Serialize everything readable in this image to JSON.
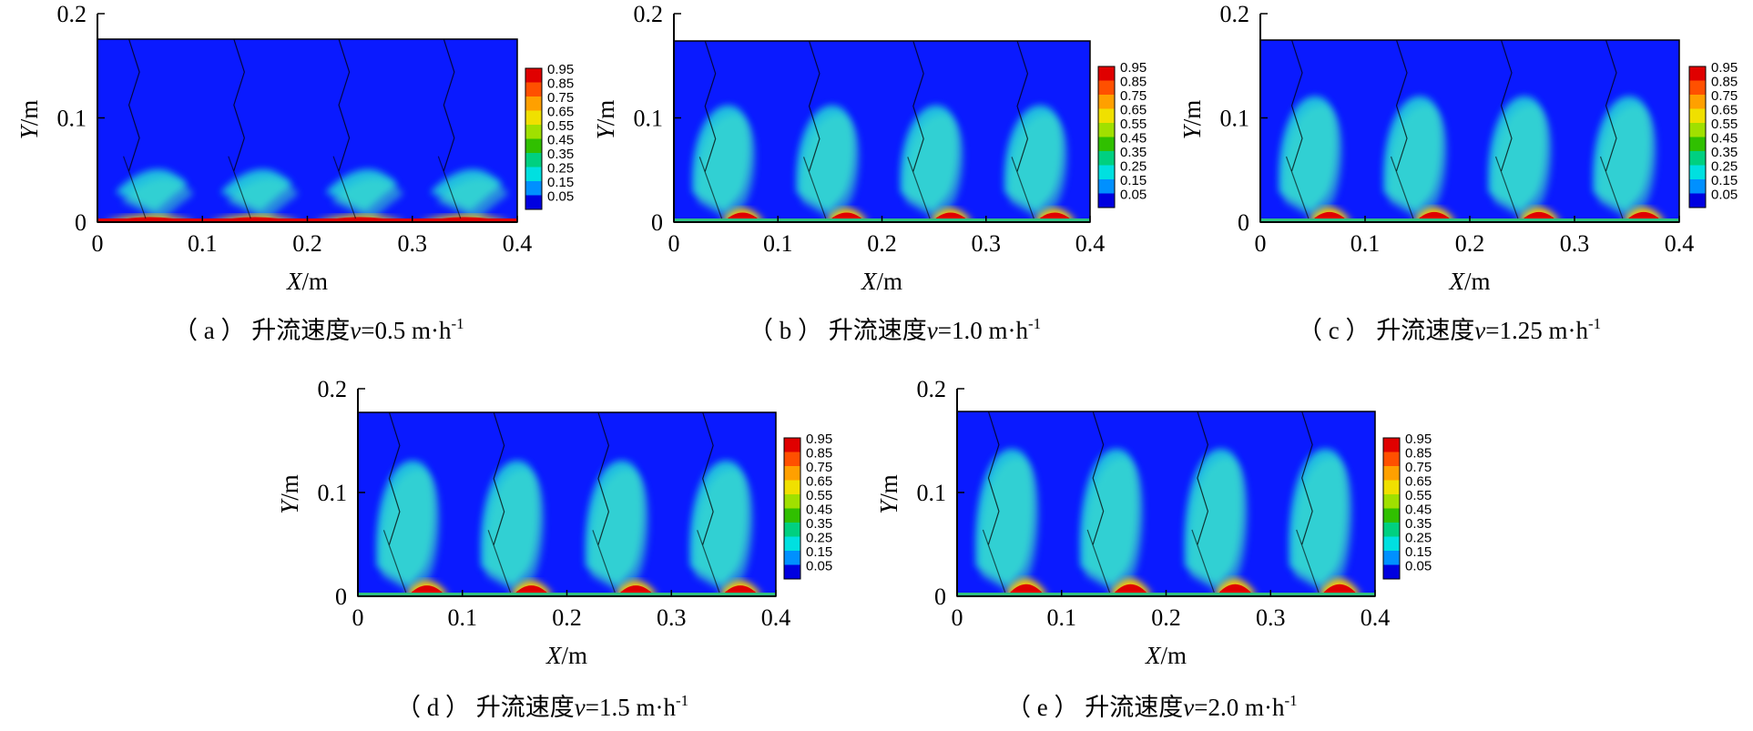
{
  "chart_data": [
    {
      "type": "heatmap",
      "caption": "（ a ） 升流速度v=0.5 m·h-1",
      "caption_parts": [
        "（ a ） 升流速度",
        "v",
        "=0.5 m·h",
        "-1"
      ],
      "xlabel_var": "X",
      "xlabel_unit": "/m",
      "ylabel_var": "Y",
      "ylabel_unit": "/m",
      "xlim": [
        0,
        0.4
      ],
      "ylim": [
        0,
        0.2
      ],
      "xticks": [
        "0",
        "0.1",
        "0.2",
        "0.3",
        "0.4"
      ],
      "yticks": [
        "0",
        "0.1",
        "0.2"
      ],
      "colorbar": [
        "0.95",
        "0.85",
        "0.75",
        "0.65",
        "0.55",
        "0.45",
        "0.35",
        "0.25",
        "0.15",
        "0.05"
      ],
      "upflow_velocity": 0.5
    },
    {
      "type": "heatmap",
      "caption": "（ b ） 升流速度v=1.0 m·h-1",
      "caption_parts": [
        "（ b ） 升流速度",
        "v",
        "=1.0 m·h",
        "-1"
      ],
      "xlabel_var": "X",
      "xlabel_unit": "/m",
      "ylabel_var": "Y",
      "ylabel_unit": "/m",
      "xlim": [
        0,
        0.4
      ],
      "ylim": [
        0,
        0.2
      ],
      "xticks": [
        "0",
        "0.1",
        "0.2",
        "0.3",
        "0.4"
      ],
      "yticks": [
        "0",
        "0.1",
        "0.2"
      ],
      "colorbar": [
        "0.95",
        "0.85",
        "0.75",
        "0.65",
        "0.55",
        "0.45",
        "0.35",
        "0.25",
        "0.15",
        "0.05"
      ],
      "upflow_velocity": 1.0
    },
    {
      "type": "heatmap",
      "caption": "（ c ） 升流速度v=1.25 m·h-1",
      "caption_parts": [
        "（ c ） 升流速度",
        "v",
        "=1.25 m·h",
        "-1"
      ],
      "xlabel_var": "X",
      "xlabel_unit": "/m",
      "ylabel_var": "Y",
      "ylabel_unit": "/m",
      "xlim": [
        0,
        0.4
      ],
      "ylim": [
        0,
        0.2
      ],
      "xticks": [
        "0",
        "0.1",
        "0.2",
        "0.3",
        "0.4"
      ],
      "yticks": [
        "0",
        "0.1",
        "0.2"
      ],
      "colorbar": [
        "0.95",
        "0.85",
        "0.75",
        "0.65",
        "0.55",
        "0.45",
        "0.35",
        "0.25",
        "0.15",
        "0.05"
      ],
      "upflow_velocity": 1.25
    },
    {
      "type": "heatmap",
      "caption": "（ d ） 升流速度v=1.5 m·h-1",
      "caption_parts": [
        "（ d ） 升流速度",
        "v",
        "=1.5 m·h",
        "-1"
      ],
      "xlabel_var": "X",
      "xlabel_unit": "/m",
      "ylabel_var": "Y",
      "ylabel_unit": "/m",
      "xlim": [
        0,
        0.4
      ],
      "ylim": [
        0,
        0.2
      ],
      "xticks": [
        "0",
        "0.1",
        "0.2",
        "0.3",
        "0.4"
      ],
      "yticks": [
        "0",
        "0.1",
        "0.2"
      ],
      "colorbar": [
        "0.95",
        "0.85",
        "0.75",
        "0.65",
        "0.55",
        "0.45",
        "0.35",
        "0.25",
        "0.15",
        "0.05"
      ],
      "upflow_velocity": 1.5
    },
    {
      "type": "heatmap",
      "caption": "（ e ） 升流速度v=2.0 m·h-1",
      "caption_parts": [
        "（ e ） 升流速度",
        "v",
        "=2.0 m·h",
        "-1"
      ],
      "xlabel_var": "X",
      "xlabel_unit": "/m",
      "ylabel_var": "Y",
      "ylabel_unit": "/m",
      "xlim": [
        0,
        0.4
      ],
      "ylim": [
        0,
        0.2
      ],
      "xticks": [
        "0",
        "0.1",
        "0.2",
        "0.3",
        "0.4"
      ],
      "yticks": [
        "0",
        "0.1",
        "0.2"
      ],
      "colorbar": [
        "0.95",
        "0.85",
        "0.75",
        "0.65",
        "0.55",
        "0.45",
        "0.35",
        "0.25",
        "0.15",
        "0.05"
      ],
      "upflow_velocity": 2.0
    }
  ],
  "colors": {
    "background_fluid": "#0a1aff",
    "colorbar_scale": [
      "#e00000",
      "#ff5000",
      "#ffa000",
      "#f0e000",
      "#a0e000",
      "#30c000",
      "#00d080",
      "#00e0e0",
      "#0090ff",
      "#0000e0"
    ]
  }
}
